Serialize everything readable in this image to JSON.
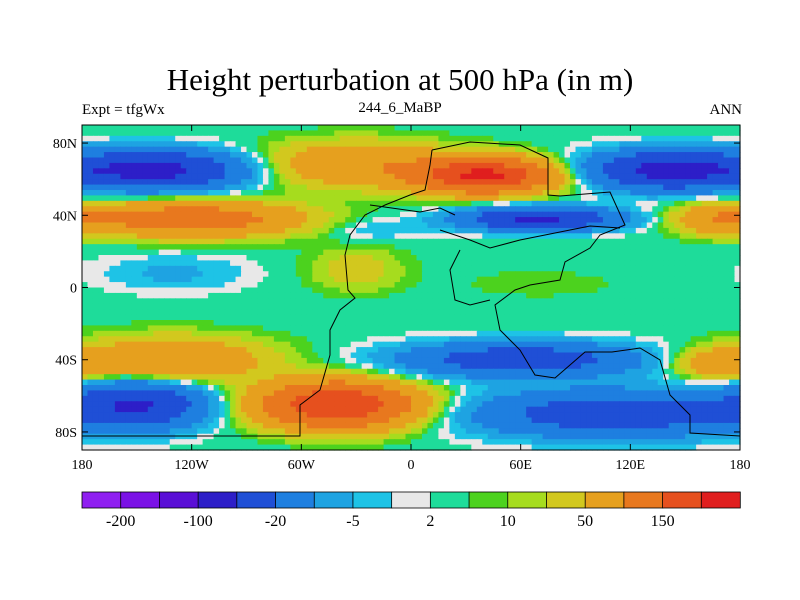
{
  "chart_data": {
    "type": "heatmap",
    "title": "Height perturbation at 500 hPa (in m)",
    "subtitle_left": "Expt = tfgWx",
    "subtitle_center": "244_6_MaBP",
    "subtitle_right": "ANN",
    "xlabel": "",
    "ylabel": "",
    "xlim": [
      -180,
      180
    ],
    "ylim": [
      -90,
      90
    ],
    "x_ticks": [
      {
        "value": -180,
        "label": "180"
      },
      {
        "value": -120,
        "label": "120W"
      },
      {
        "value": -60,
        "label": "60W"
      },
      {
        "value": 0,
        "label": "0"
      },
      {
        "value": 60,
        "label": "60E"
      },
      {
        "value": 120,
        "label": "120E"
      },
      {
        "value": 180,
        "label": "180"
      }
    ],
    "y_ticks": [
      {
        "value": 80,
        "label": "80N"
      },
      {
        "value": 40,
        "label": "40N"
      },
      {
        "value": 0,
        "label": "0"
      },
      {
        "value": -40,
        "label": "40S"
      },
      {
        "value": -80,
        "label": "80S"
      }
    ],
    "colorbar": {
      "colors": [
        "#8f1ff0",
        "#7b12e6",
        "#5a0fd6",
        "#2d1ec8",
        "#1f4fd6",
        "#1e7fe0",
        "#1ea3e2",
        "#1ec3e6",
        "#e8e8e8",
        "#1edc9a",
        "#4cd21e",
        "#a6dc1e",
        "#d2c81e",
        "#e6a01e",
        "#e8781e",
        "#e6501e",
        "#e01e1e"
      ],
      "labeled_levels": [
        {
          "boundary_index": 1,
          "label": "-200"
        },
        {
          "boundary_index": 3,
          "label": "-100"
        },
        {
          "boundary_index": 5,
          "label": "-20"
        },
        {
          "boundary_index": 7,
          "label": "-5"
        },
        {
          "boundary_index": 9,
          "label": "2"
        },
        {
          "boundary_index": 11,
          "label": "10"
        },
        {
          "boundary_index": 13,
          "label": "50"
        },
        {
          "boundary_index": 15,
          "label": "150"
        }
      ]
    },
    "field_anomalies": [
      {
        "lon": -140,
        "lat": 65,
        "value": -120,
        "lonw": 45,
        "latw": 10
      },
      {
        "lon": -30,
        "lat": 68,
        "value": 45,
        "lonw": 50,
        "latw": 12
      },
      {
        "lon": 40,
        "lat": 62,
        "value": 160,
        "lonw": 35,
        "latw": 9
      },
      {
        "lon": 140,
        "lat": 65,
        "value": -120,
        "lonw": 40,
        "latw": 10
      },
      {
        "lon": -120,
        "lat": 38,
        "value": 80,
        "lonw": 55,
        "latw": 9
      },
      {
        "lon": -20,
        "lat": 32,
        "value": -10,
        "lonw": 25,
        "latw": 6
      },
      {
        "lon": 70,
        "lat": 38,
        "value": -110,
        "lonw": 40,
        "latw": 6
      },
      {
        "lon": 170,
        "lat": 38,
        "value": 40,
        "lonw": 25,
        "latw": 8
      },
      {
        "lon": -130,
        "lat": 8,
        "value": -12,
        "lonw": 40,
        "latw": 10
      },
      {
        "lon": -30,
        "lat": 10,
        "value": 15,
        "lonw": 25,
        "latw": 12
      },
      {
        "lon": 70,
        "lat": 2,
        "value": 4,
        "lonw": 45,
        "latw": 8
      },
      {
        "lon": -130,
        "lat": -40,
        "value": 45,
        "lonw": 50,
        "latw": 12
      },
      {
        "lon": 60,
        "lat": -40,
        "value": -80,
        "lonw": 60,
        "latw": 9
      },
      {
        "lon": 170,
        "lat": -42,
        "value": 40,
        "lonw": 25,
        "latw": 8
      },
      {
        "lon": -150,
        "lat": -65,
        "value": -100,
        "lonw": 35,
        "latw": 12
      },
      {
        "lon": -40,
        "lat": -65,
        "value": 150,
        "lonw": 40,
        "latw": 12
      },
      {
        "lon": 110,
        "lat": -70,
        "value": -80,
        "lonw": 70,
        "latw": 12
      }
    ]
  }
}
